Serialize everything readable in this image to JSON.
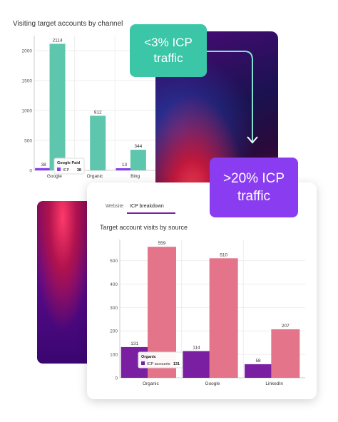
{
  "callouts": {
    "low": [
      "<3% ICP",
      "traffic"
    ],
    "high": [
      ">20% ICP",
      "traffic"
    ]
  },
  "tabs": {
    "website": "Website",
    "icp": "ICP breakdown"
  },
  "colors": {
    "teal": "#5ec6ad",
    "purple": "#7a1fa2",
    "purple_light": "#8a3cf0",
    "pink": "#e4748a",
    "teal_callout": "#3cc6a8"
  },
  "chart_data": [
    {
      "type": "bar",
      "title": "Visiting target accounts by channel",
      "categories": [
        "Google",
        "Organic",
        "Bing"
      ],
      "series": [
        {
          "name": "ICP",
          "values": [
            38,
            0,
            13
          ]
        },
        {
          "name": "",
          "values": [
            2114,
            912,
            344
          ]
        }
      ],
      "data_labels": [
        [
          "38",
          "",
          "13"
        ],
        [
          "2114",
          "912",
          "344"
        ]
      ],
      "ylim": [
        0,
        2250
      ],
      "yticks": [
        0,
        500,
        1000,
        1500,
        2000
      ],
      "grid": true,
      "tooltip": {
        "title": "Google Paid",
        "label": "ICP",
        "value": "38"
      }
    },
    {
      "type": "bar",
      "title": "Target account visits by source",
      "categories": [
        "Organic",
        "Google",
        "LinkedIn"
      ],
      "series": [
        {
          "name": "ICP accounts",
          "values": [
            131,
            114,
            58
          ]
        },
        {
          "name": "",
          "values": [
            559,
            510,
            207
          ]
        }
      ],
      "ylim": [
        0,
        590
      ],
      "yticks": [
        0,
        100,
        200,
        300,
        400,
        500
      ],
      "grid": true,
      "tooltip": {
        "title": "Organic",
        "label": "ICP accounts",
        "value": "131"
      }
    }
  ]
}
